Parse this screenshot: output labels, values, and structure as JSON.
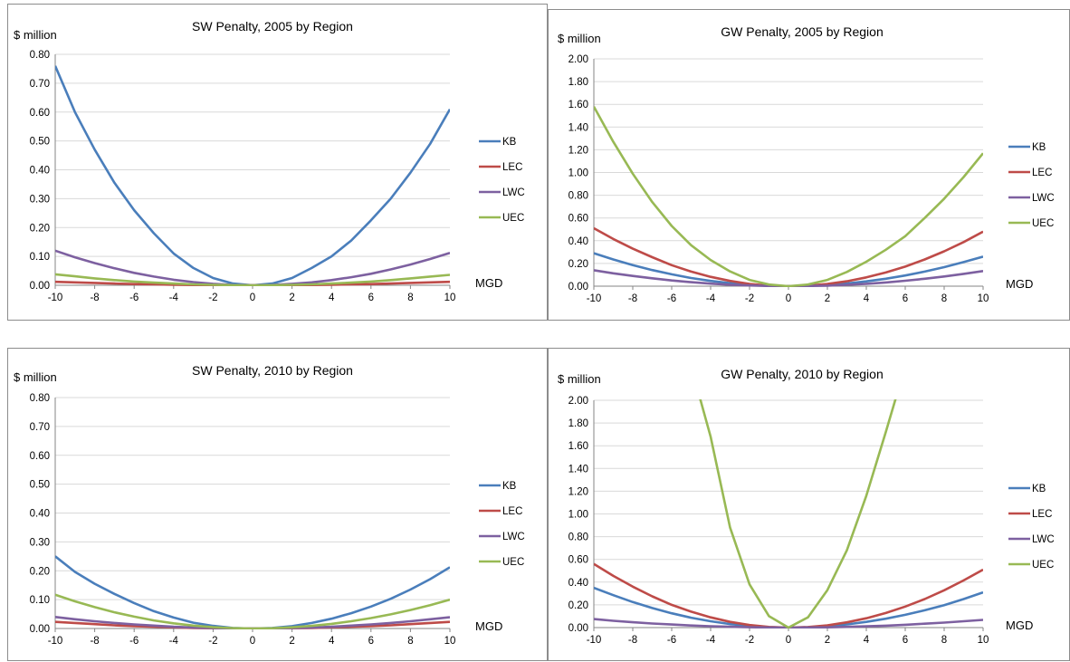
{
  "legend": [
    {
      "name": "KB",
      "color": "#4a7ebb"
    },
    {
      "name": "LEC",
      "color": "#be4b48"
    },
    {
      "name": "LWC",
      "color": "#7d60a0"
    },
    {
      "name": "UEC",
      "color": "#98b954"
    }
  ],
  "chart_data": [
    {
      "type": "line",
      "title": "SW Penalty, 2005 by Region",
      "ylabel": "$ million",
      "xlabel": "MGD",
      "xlim": [
        -10,
        10
      ],
      "ylim": [
        0,
        0.8
      ],
      "xticks": [
        "-10",
        "-8",
        "-6",
        "-4",
        "-2",
        "0",
        "2",
        "4",
        "6",
        "8",
        "10"
      ],
      "yticks": [
        "0.00",
        "0.10",
        "0.20",
        "0.30",
        "0.40",
        "0.50",
        "0.60",
        "0.70",
        "0.80"
      ],
      "x": [
        -10,
        -9,
        -8,
        -7,
        -6,
        -5,
        -4,
        -3,
        -2,
        -1,
        0,
        1,
        2,
        3,
        4,
        5,
        6,
        7,
        8,
        9,
        10
      ],
      "series": [
        {
          "name": "KB",
          "values": [
            0.76,
            0.6,
            0.47,
            0.355,
            0.26,
            0.18,
            0.11,
            0.06,
            0.025,
            0.006,
            0,
            0.006,
            0.025,
            0.06,
            0.1,
            0.155,
            0.225,
            0.3,
            0.39,
            0.49,
            0.61
          ]
        },
        {
          "name": "LEC",
          "values": [
            0.012,
            0.01,
            0.008,
            0.006,
            0.004,
            0.003,
            0.002,
            0.001,
            0.0005,
            0,
            0,
            0,
            0.0005,
            0.001,
            0.002,
            0.003,
            0.004,
            0.006,
            0.008,
            0.01,
            0.012
          ]
        },
        {
          "name": "LWC",
          "values": [
            0.12,
            0.097,
            0.077,
            0.059,
            0.043,
            0.03,
            0.019,
            0.011,
            0.005,
            0.001,
            0,
            0.001,
            0.005,
            0.01,
            0.018,
            0.028,
            0.04,
            0.055,
            0.072,
            0.091,
            0.112
          ]
        },
        {
          "name": "UEC",
          "values": [
            0.038,
            0.031,
            0.024,
            0.018,
            0.013,
            0.009,
            0.006,
            0.003,
            0.0015,
            0.0004,
            0,
            0.0004,
            0.0015,
            0.003,
            0.006,
            0.009,
            0.013,
            0.018,
            0.024,
            0.03,
            0.036
          ]
        }
      ]
    },
    {
      "type": "line",
      "title": "GW Penalty, 2005 by Region",
      "ylabel": "$ million",
      "xlabel": "MGD",
      "xlim": [
        -10,
        10
      ],
      "ylim": [
        0,
        2
      ],
      "xticks": [
        "-10",
        "-8",
        "-6",
        "-4",
        "-2",
        "0",
        "2",
        "4",
        "6",
        "8",
        "10"
      ],
      "yticks": [
        "0.00",
        "0.20",
        "0.40",
        "0.60",
        "0.80",
        "1.00",
        "1.20",
        "1.40",
        "1.60",
        "1.80",
        "2.00"
      ],
      "x": [
        -10,
        -9,
        -8,
        -7,
        -6,
        -5,
        -4,
        -3,
        -2,
        -1,
        0,
        1,
        2,
        3,
        4,
        5,
        6,
        7,
        8,
        9,
        10
      ],
      "series": [
        {
          "name": "KB",
          "values": [
            0.29,
            0.235,
            0.185,
            0.142,
            0.104,
            0.072,
            0.046,
            0.026,
            0.012,
            0.003,
            0,
            0.003,
            0.011,
            0.024,
            0.042,
            0.065,
            0.094,
            0.128,
            0.167,
            0.212,
            0.26
          ]
        },
        {
          "name": "LEC",
          "values": [
            0.51,
            0.415,
            0.33,
            0.255,
            0.185,
            0.128,
            0.082,
            0.046,
            0.02,
            0.005,
            0,
            0.005,
            0.019,
            0.043,
            0.077,
            0.12,
            0.172,
            0.235,
            0.307,
            0.388,
            0.48
          ]
        },
        {
          "name": "LWC",
          "values": [
            0.14,
            0.113,
            0.09,
            0.069,
            0.05,
            0.035,
            0.022,
            0.013,
            0.006,
            0.0015,
            0,
            0.0015,
            0.005,
            0.012,
            0.021,
            0.033,
            0.048,
            0.065,
            0.085,
            0.108,
            0.133
          ]
        },
        {
          "name": "UEC",
          "values": [
            1.58,
            1.27,
            0.99,
            0.74,
            0.53,
            0.36,
            0.23,
            0.13,
            0.055,
            0.014,
            0,
            0.014,
            0.055,
            0.125,
            0.215,
            0.32,
            0.44,
            0.6,
            0.77,
            0.96,
            1.17
          ]
        }
      ]
    },
    {
      "type": "line",
      "title": "SW Penalty, 2010 by Region",
      "ylabel": "$ million",
      "xlabel": "MGD",
      "xlim": [
        -10,
        10
      ],
      "ylim": [
        0,
        0.8
      ],
      "xticks": [
        "-10",
        "-8",
        "-6",
        "-4",
        "-2",
        "0",
        "2",
        "4",
        "6",
        "8",
        "10"
      ],
      "yticks": [
        "0.00",
        "0.10",
        "0.20",
        "0.30",
        "0.40",
        "0.50",
        "0.60",
        "0.70",
        "0.80"
      ],
      "x": [
        -10,
        -9,
        -8,
        -7,
        -6,
        -5,
        -4,
        -3,
        -2,
        -1,
        0,
        1,
        2,
        3,
        4,
        5,
        6,
        7,
        8,
        9,
        10
      ],
      "series": [
        {
          "name": "KB",
          "values": [
            0.25,
            0.196,
            0.155,
            0.12,
            0.088,
            0.06,
            0.038,
            0.02,
            0.009,
            0.002,
            0,
            0.002,
            0.008,
            0.019,
            0.034,
            0.053,
            0.076,
            0.103,
            0.135,
            0.171,
            0.212
          ]
        },
        {
          "name": "LEC",
          "values": [
            0.023,
            0.019,
            0.015,
            0.011,
            0.008,
            0.006,
            0.004,
            0.002,
            0.001,
            0.0002,
            0,
            0.0002,
            0.001,
            0.002,
            0.004,
            0.006,
            0.008,
            0.011,
            0.015,
            0.019,
            0.023
          ]
        },
        {
          "name": "LWC",
          "values": [
            0.04,
            0.032,
            0.025,
            0.019,
            0.014,
            0.01,
            0.006,
            0.0035,
            0.0016,
            0.0004,
            0,
            0.0004,
            0.0016,
            0.0035,
            0.006,
            0.01,
            0.014,
            0.019,
            0.025,
            0.032,
            0.039
          ]
        },
        {
          "name": "UEC",
          "values": [
            0.117,
            0.094,
            0.074,
            0.056,
            0.041,
            0.028,
            0.018,
            0.01,
            0.0045,
            0.0011,
            0,
            0.001,
            0.004,
            0.009,
            0.016,
            0.025,
            0.036,
            0.049,
            0.064,
            0.081,
            0.1
          ]
        }
      ]
    },
    {
      "type": "line",
      "title": "GW Penalty, 2010 by Region",
      "ylabel": "$ million",
      "xlabel": "MGD",
      "xlim": [
        -10,
        10
      ],
      "ylim": [
        0,
        2
      ],
      "xticks": [
        "-10",
        "-8",
        "-6",
        "-4",
        "-2",
        "0",
        "2",
        "4",
        "6",
        "8",
        "10"
      ],
      "yticks": [
        "0.00",
        "0.20",
        "0.40",
        "0.60",
        "0.80",
        "1.00",
        "1.20",
        "1.40",
        "1.60",
        "1.80",
        "2.00"
      ],
      "x": [
        -10,
        -9,
        -8,
        -7,
        -6,
        -5,
        -4,
        -3,
        -2,
        -1,
        0,
        1,
        2,
        3,
        4,
        5,
        6,
        7,
        8,
        9,
        10
      ],
      "series": [
        {
          "name": "KB",
          "values": [
            0.35,
            0.285,
            0.225,
            0.172,
            0.126,
            0.087,
            0.056,
            0.031,
            0.014,
            0.0035,
            0,
            0.003,
            0.012,
            0.028,
            0.05,
            0.078,
            0.112,
            0.152,
            0.198,
            0.251,
            0.31
          ]
        },
        {
          "name": "LEC",
          "values": [
            0.56,
            0.455,
            0.36,
            0.275,
            0.2,
            0.14,
            0.09,
            0.05,
            0.022,
            0.0055,
            0,
            0.005,
            0.02,
            0.046,
            0.082,
            0.128,
            0.185,
            0.251,
            0.328,
            0.415,
            0.51
          ]
        },
        {
          "name": "LWC",
          "values": [
            0.075,
            0.06,
            0.047,
            0.036,
            0.027,
            0.018,
            0.012,
            0.0068,
            0.003,
            0.0008,
            0,
            0.0007,
            0.0027,
            0.006,
            0.011,
            0.017,
            0.025,
            0.034,
            0.044,
            0.056,
            0.068
          ]
        },
        {
          "name": "UEC",
          "values": [
            null,
            null,
            null,
            null,
            null,
            null,
            1.68,
            0.88,
            0.38,
            0.1,
            0,
            0.09,
            0.33,
            0.68,
            1.16,
            1.72,
            null,
            null,
            null,
            null,
            null
          ]
        }
      ]
    }
  ]
}
